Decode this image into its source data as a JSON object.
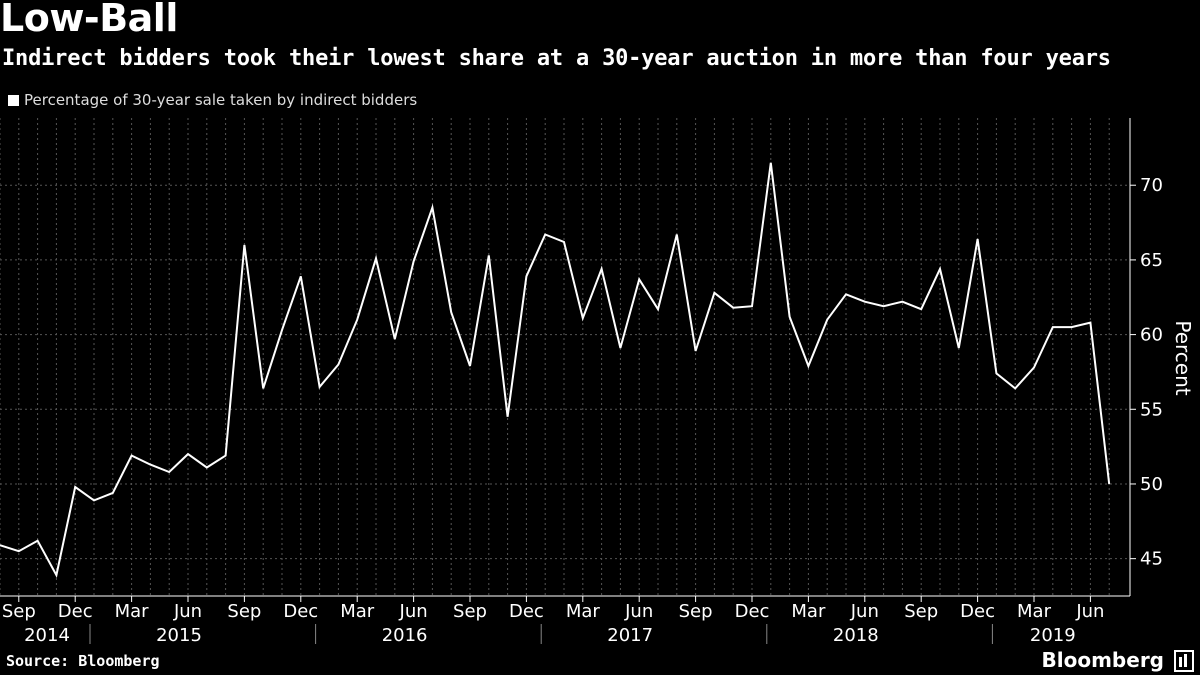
{
  "header": {
    "title": "Low-Ball",
    "subtitle": "Indirect bidders took their lowest share at a 30-year auction in more than four years",
    "legend_label": "Percentage of 30-year sale taken by indirect bidders"
  },
  "footer": {
    "source": "Source: Bloomberg",
    "brand": "Bloomberg"
  },
  "colors": {
    "background": "#000000",
    "line": "#ffffff",
    "grid": "#555555"
  },
  "chart_data": {
    "type": "line",
    "title": "Low-Ball",
    "ylabel": "Percent",
    "ylim": [
      42.5,
      74.5
    ],
    "yticks": [
      45,
      50,
      55,
      60,
      65,
      70
    ],
    "month_labels": [
      "Sep",
      "Dec",
      "Mar",
      "Jun",
      "Sep",
      "Dec",
      "Mar",
      "Jun",
      "Sep",
      "Dec",
      "Mar",
      "Jun",
      "Sep",
      "Dec",
      "Mar",
      "Jun",
      "Sep",
      "Dec",
      "Mar",
      "Jun"
    ],
    "year_labels": [
      "2014",
      "2015",
      "2016",
      "2017",
      "2018",
      "2019"
    ],
    "x_start": "2014-08",
    "x_end": "2019-08",
    "series": [
      {
        "name": "Percentage of 30-year sale taken by indirect bidders",
        "values": [
          45.9,
          45.5,
          46.2,
          43.9,
          49.8,
          48.9,
          49.4,
          51.9,
          51.3,
          50.8,
          52.0,
          51.1,
          51.9,
          66.0,
          56.4,
          60.3,
          63.9,
          56.5,
          58.0,
          61.0,
          65.1,
          59.7,
          64.9,
          68.5,
          61.5,
          57.9,
          65.3,
          54.5,
          63.9,
          66.7,
          66.2,
          61.1,
          64.4,
          59.1,
          63.7,
          61.7,
          66.7,
          58.9,
          62.8,
          61.8,
          61.9,
          71.5,
          61.2,
          57.9,
          61.0,
          62.7,
          62.2,
          61.9,
          62.2,
          61.7,
          64.4,
          59.1,
          66.4,
          57.4,
          56.4,
          57.8,
          60.5,
          60.5,
          60.8,
          50.0
        ]
      }
    ]
  }
}
